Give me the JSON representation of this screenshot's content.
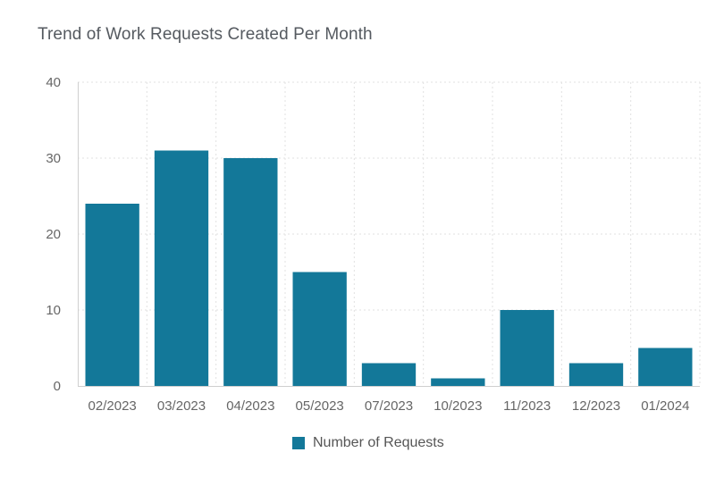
{
  "chart_data": {
    "type": "bar",
    "title": "Trend of Work Requests Created Per Month",
    "categories": [
      "02/2023",
      "03/2023",
      "04/2023",
      "05/2023",
      "07/2023",
      "10/2023",
      "11/2023",
      "12/2023",
      "01/2024"
    ],
    "series": [
      {
        "name": "Number of Requests",
        "values": [
          24,
          31,
          30,
          15,
          3,
          1,
          10,
          3,
          5
        ]
      }
    ],
    "ylim": [
      0,
      40
    ],
    "yticks": [
      "0",
      "10",
      "20",
      "30",
      "40"
    ],
    "grid": true,
    "legend_position": "bottom-center",
    "bar_color": "#137899"
  }
}
